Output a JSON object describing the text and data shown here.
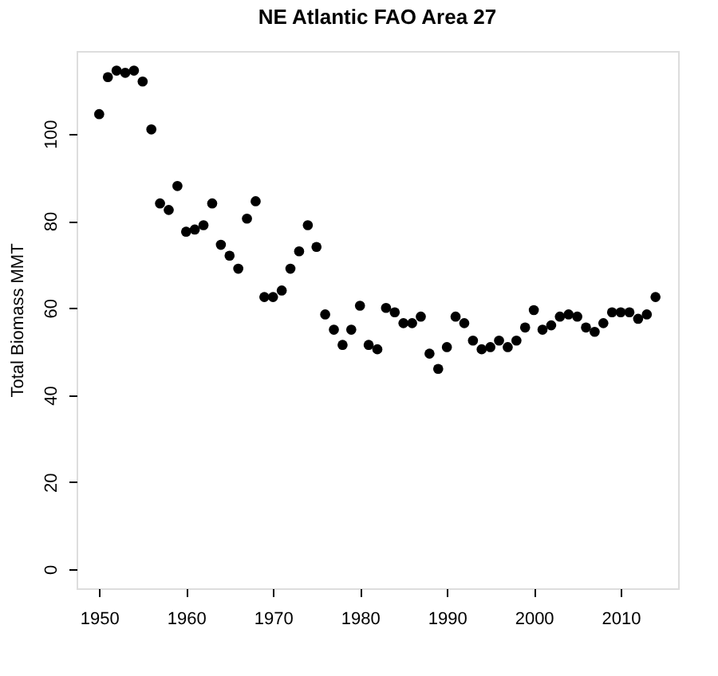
{
  "chart_data": {
    "type": "scatter",
    "title": "NE Atlantic FAO Area 27",
    "ylabel": "Total Biomass  MMT",
    "x": [
      1950,
      1951,
      1952,
      1953,
      1954,
      1955,
      1956,
      1957,
      1958,
      1959,
      1960,
      1961,
      1962,
      1963,
      1964,
      1965,
      1966,
      1967,
      1968,
      1969,
      1970,
      1971,
      1972,
      1973,
      1974,
      1975,
      1976,
      1977,
      1978,
      1979,
      1980,
      1981,
      1982,
      1983,
      1984,
      1985,
      1986,
      1987,
      1988,
      1989,
      1990,
      1991,
      1992,
      1993,
      1994,
      1995,
      1996,
      1997,
      1998,
      1999,
      2000,
      2001,
      2002,
      2003,
      2004,
      2005,
      2006,
      2007,
      2008,
      2009,
      2010,
      2011,
      2012,
      2013,
      2014
    ],
    "series": [
      {
        "color": "#000000",
        "values": [
          104.5,
          113,
          114.5,
          114,
          114.5,
          112,
          101,
          84,
          82.5,
          88,
          77.5,
          78,
          79,
          84,
          74.5,
          72,
          69,
          80.5,
          84.5,
          62.5,
          62.5,
          64,
          69,
          73,
          79,
          74,
          58.5,
          55,
          51.5,
          55,
          60.5,
          51.5,
          50.5,
          60,
          59,
          56.5,
          56.5,
          58,
          49.5,
          46,
          51,
          58,
          56.5,
          52.5,
          50.5,
          51,
          52.5,
          51,
          52.5,
          55.5,
          59.5,
          55,
          56,
          58,
          58.5,
          58,
          55.5,
          54.5,
          56.5,
          59,
          59,
          59,
          57.5,
          58.5,
          62.5
        ]
      }
    ],
    "xlim": [
      1947.4,
      2016.6
    ],
    "xticks": [
      1950,
      1960,
      1970,
      1980,
      1990,
      2000,
      2010
    ],
    "ylim": [
      -4.4,
      119
    ],
    "yticks": [
      0,
      20,
      40,
      60,
      80,
      100
    ],
    "marker": "circle",
    "grid": false
  }
}
